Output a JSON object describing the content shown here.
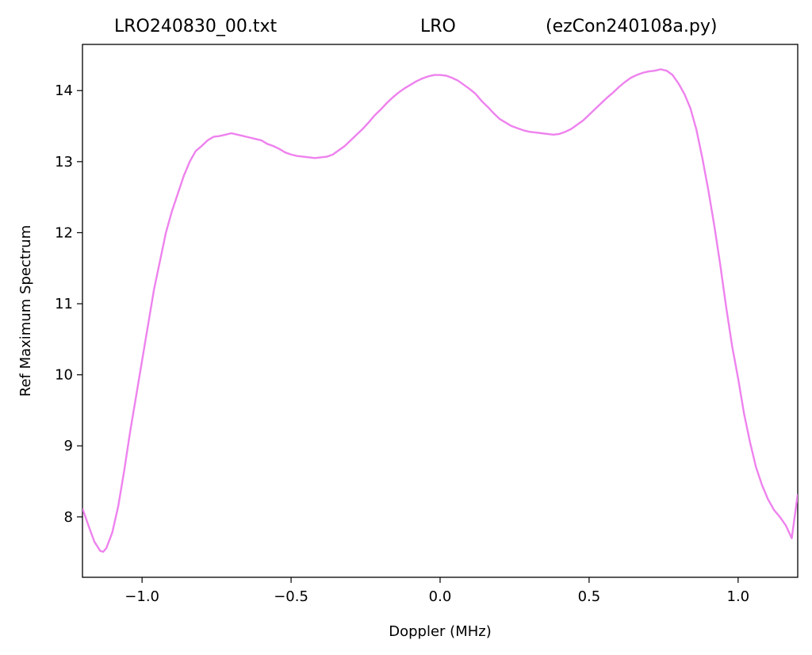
{
  "chart_data": {
    "type": "line",
    "title_parts": [
      "LRO240830_00.txt",
      "LRO",
      "(ezCon240108a.py)"
    ],
    "xlabel": "Doppler (MHz)",
    "ylabel": "Ref Maximum Spectrum",
    "xlim": [
      -1.2,
      1.2
    ],
    "ylim": [
      7.15,
      14.65
    ],
    "x_ticks": [
      -1.0,
      -0.5,
      0.0,
      0.5,
      1.0
    ],
    "x_tick_labels": [
      "−1.0",
      "−0.5",
      "0.0",
      "0.5",
      "1.0"
    ],
    "y_ticks": [
      8,
      9,
      10,
      11,
      12,
      13,
      14
    ],
    "y_tick_labels": [
      "8",
      "9",
      "10",
      "11",
      "12",
      "13",
      "14"
    ],
    "grid": false,
    "legend": "none",
    "series": [
      {
        "color": "#ee82ee",
        "points": [
          [
            -1.2,
            8.12
          ],
          [
            -1.18,
            7.88
          ],
          [
            -1.16,
            7.65
          ],
          [
            -1.14,
            7.52
          ],
          [
            -1.13,
            7.51
          ],
          [
            -1.12,
            7.56
          ],
          [
            -1.1,
            7.78
          ],
          [
            -1.08,
            8.15
          ],
          [
            -1.06,
            8.65
          ],
          [
            -1.04,
            9.2
          ],
          [
            -1.02,
            9.7
          ],
          [
            -1.0,
            10.2
          ],
          [
            -0.98,
            10.7
          ],
          [
            -0.96,
            11.2
          ],
          [
            -0.94,
            11.6
          ],
          [
            -0.92,
            12.0
          ],
          [
            -0.9,
            12.3
          ],
          [
            -0.88,
            12.55
          ],
          [
            -0.86,
            12.8
          ],
          [
            -0.84,
            13.0
          ],
          [
            -0.82,
            13.15
          ],
          [
            -0.8,
            13.22
          ],
          [
            -0.78,
            13.3
          ],
          [
            -0.76,
            13.35
          ],
          [
            -0.74,
            13.36
          ],
          [
            -0.72,
            13.38
          ],
          [
            -0.7,
            13.4
          ],
          [
            -0.68,
            13.38
          ],
          [
            -0.66,
            13.36
          ],
          [
            -0.64,
            13.34
          ],
          [
            -0.62,
            13.32
          ],
          [
            -0.6,
            13.3
          ],
          [
            -0.58,
            13.25
          ],
          [
            -0.56,
            13.22
          ],
          [
            -0.54,
            13.18
          ],
          [
            -0.52,
            13.13
          ],
          [
            -0.5,
            13.1
          ],
          [
            -0.48,
            13.08
          ],
          [
            -0.46,
            13.07
          ],
          [
            -0.44,
            13.06
          ],
          [
            -0.42,
            13.05
          ],
          [
            -0.4,
            13.06
          ],
          [
            -0.38,
            13.07
          ],
          [
            -0.36,
            13.1
          ],
          [
            -0.34,
            13.16
          ],
          [
            -0.32,
            13.22
          ],
          [
            -0.3,
            13.3
          ],
          [
            -0.28,
            13.38
          ],
          [
            -0.26,
            13.46
          ],
          [
            -0.24,
            13.55
          ],
          [
            -0.22,
            13.65
          ],
          [
            -0.2,
            13.73
          ],
          [
            -0.18,
            13.82
          ],
          [
            -0.16,
            13.9
          ],
          [
            -0.14,
            13.97
          ],
          [
            -0.12,
            14.03
          ],
          [
            -0.1,
            14.08
          ],
          [
            -0.08,
            14.13
          ],
          [
            -0.06,
            14.17
          ],
          [
            -0.04,
            14.2
          ],
          [
            -0.02,
            14.22
          ],
          [
            0.0,
            14.22
          ],
          [
            0.02,
            14.21
          ],
          [
            0.04,
            14.18
          ],
          [
            0.06,
            14.14
          ],
          [
            0.08,
            14.08
          ],
          [
            0.1,
            14.02
          ],
          [
            0.12,
            13.95
          ],
          [
            0.14,
            13.85
          ],
          [
            0.16,
            13.77
          ],
          [
            0.18,
            13.68
          ],
          [
            0.2,
            13.6
          ],
          [
            0.22,
            13.55
          ],
          [
            0.24,
            13.5
          ],
          [
            0.26,
            13.47
          ],
          [
            0.28,
            13.44
          ],
          [
            0.3,
            13.42
          ],
          [
            0.32,
            13.41
          ],
          [
            0.34,
            13.4
          ],
          [
            0.36,
            13.39
          ],
          [
            0.38,
            13.38
          ],
          [
            0.4,
            13.39
          ],
          [
            0.42,
            13.42
          ],
          [
            0.44,
            13.46
          ],
          [
            0.46,
            13.52
          ],
          [
            0.48,
            13.58
          ],
          [
            0.5,
            13.66
          ],
          [
            0.52,
            13.74
          ],
          [
            0.54,
            13.82
          ],
          [
            0.56,
            13.9
          ],
          [
            0.58,
            13.97
          ],
          [
            0.6,
            14.05
          ],
          [
            0.62,
            14.12
          ],
          [
            0.64,
            14.18
          ],
          [
            0.66,
            14.22
          ],
          [
            0.68,
            14.25
          ],
          [
            0.7,
            14.27
          ],
          [
            0.72,
            14.28
          ],
          [
            0.74,
            14.3
          ],
          [
            0.76,
            14.28
          ],
          [
            0.78,
            14.22
          ],
          [
            0.8,
            14.1
          ],
          [
            0.82,
            13.95
          ],
          [
            0.84,
            13.75
          ],
          [
            0.86,
            13.45
          ],
          [
            0.88,
            13.05
          ],
          [
            0.9,
            12.6
          ],
          [
            0.92,
            12.1
          ],
          [
            0.94,
            11.55
          ],
          [
            0.96,
            10.95
          ],
          [
            0.98,
            10.4
          ],
          [
            1.0,
            9.95
          ],
          [
            1.02,
            9.45
          ],
          [
            1.04,
            9.05
          ],
          [
            1.06,
            8.7
          ],
          [
            1.08,
            8.45
          ],
          [
            1.1,
            8.25
          ],
          [
            1.12,
            8.1
          ],
          [
            1.14,
            8.0
          ],
          [
            1.16,
            7.88
          ],
          [
            1.18,
            7.7
          ],
          [
            1.2,
            8.32
          ]
        ]
      }
    ]
  }
}
